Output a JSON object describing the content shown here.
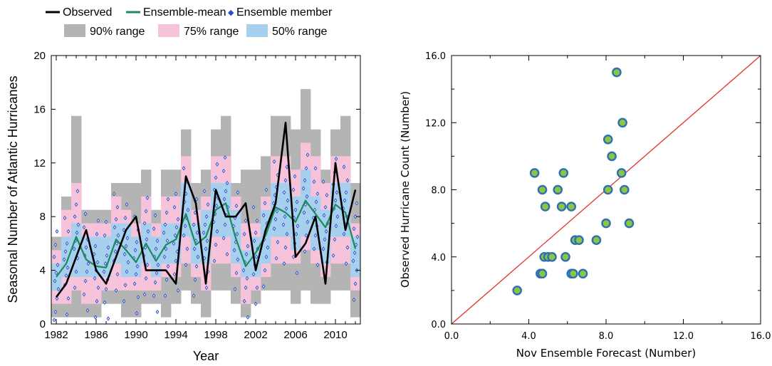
{
  "legend": {
    "observed": "Observed",
    "ensemble_mean": "Ensemble-mean",
    "ensemble_member": "Ensemble member",
    "range90": "90% range",
    "range75": "75% range",
    "range50": "50% range"
  },
  "colors": {
    "observed": "#000000",
    "ensemble_mean": "#1b8a5a",
    "ensemble_member": "#2b4fc7",
    "range90": "#b4b4b4",
    "range75": "#f6c3da",
    "range50": "#a6d0ee",
    "one_to_one": "#e0312b",
    "scatter_fill": "#8cc63f",
    "scatter_edge": "#2e6fb8"
  },
  "chart_data": [
    {
      "type": "line",
      "title": "",
      "xlabel": "Year",
      "ylabel": "Seasonal Number of Atlantic Hurricanes",
      "xlim": [
        1981.5,
        2012.5
      ],
      "ylim": [
        0,
        20
      ],
      "xticks": [
        1982,
        1986,
        1990,
        1994,
        1998,
        2002,
        2006,
        2010
      ],
      "yticks": [
        0,
        4,
        8,
        12,
        16,
        20
      ],
      "grid": false,
      "legend_position": "top",
      "x": [
        1982,
        1983,
        1984,
        1985,
        1986,
        1987,
        1988,
        1989,
        1990,
        1991,
        1992,
        1993,
        1994,
        1995,
        1996,
        1997,
        1998,
        1999,
        2000,
        2001,
        2002,
        2003,
        2004,
        2005,
        2006,
        2007,
        2008,
        2009,
        2010,
        2011,
        2012
      ],
      "series": [
        {
          "name": "Observed",
          "values": [
            2,
            3,
            5,
            7,
            4,
            3,
            5,
            7,
            8,
            4,
            4,
            4,
            3,
            11,
            9,
            3,
            10,
            8,
            8,
            9,
            4,
            7,
            9,
            15,
            5,
            6,
            8,
            3,
            12,
            7,
            10
          ]
        },
        {
          "name": "Ensemble-mean",
          "values": [
            3.5,
            4.5,
            6.5,
            4.8,
            4.3,
            4.2,
            6.3,
            5.5,
            4.6,
            6.0,
            4.7,
            5.9,
            6.3,
            8.2,
            5.9,
            6.5,
            8.5,
            9.0,
            6.4,
            4.3,
            5.3,
            6.6,
            8.7,
            8.3,
            7.6,
            9.2,
            8.2,
            7.2,
            8.9,
            8.3,
            5.6
          ]
        }
      ],
      "ranges": {
        "range90": [
          [
            0.5,
            6.5
          ],
          [
            0.5,
            9.5
          ],
          [
            0.5,
            15.5
          ],
          [
            0.5,
            8.5
          ],
          [
            0.5,
            8.5
          ],
          [
            1.5,
            8.5
          ],
          [
            1.5,
            10.5
          ],
          [
            0.5,
            10.5
          ],
          [
            0.5,
            10.5
          ],
          [
            1.5,
            11.5
          ],
          [
            1.5,
            8.5
          ],
          [
            0.5,
            11.5
          ],
          [
            1.5,
            11.5
          ],
          [
            2.5,
            14.5
          ],
          [
            1.5,
            10.5
          ],
          [
            0.5,
            11.5
          ],
          [
            2.5,
            14.5
          ],
          [
            2.5,
            15.5
          ],
          [
            1.5,
            10.5
          ],
          [
            0.5,
            11.5
          ],
          [
            1.5,
            11.5
          ],
          [
            2.5,
            12.5
          ],
          [
            2.5,
            15.5
          ],
          [
            2.5,
            15.5
          ],
          [
            1.5,
            14.5
          ],
          [
            2.5,
            17.5
          ],
          [
            1.5,
            14.5
          ],
          [
            1.5,
            11.5
          ],
          [
            2.5,
            14.5
          ],
          [
            2.5,
            15.5
          ],
          [
            0.5,
            10.5
          ]
        ],
        "range75": [
          [
            1.5,
            5.5
          ],
          [
            1.5,
            8.5
          ],
          [
            2.5,
            10.5
          ],
          [
            1.5,
            7.5
          ],
          [
            1.5,
            7.5
          ],
          [
            2.5,
            7.5
          ],
          [
            2.5,
            9.5
          ],
          [
            2.5,
            8.5
          ],
          [
            2.5,
            7.5
          ],
          [
            2.5,
            9.5
          ],
          [
            2.5,
            7.5
          ],
          [
            3.5,
            9.5
          ],
          [
            3.5,
            9.5
          ],
          [
            4.5,
            12.5
          ],
          [
            3.5,
            8.5
          ],
          [
            2.5,
            9.5
          ],
          [
            4.5,
            12.5
          ],
          [
            4.5,
            12.5
          ],
          [
            3.5,
            9.5
          ],
          [
            1.5,
            7.5
          ],
          [
            2.5,
            7.5
          ],
          [
            3.5,
            9.5
          ],
          [
            4.5,
            12.5
          ],
          [
            4.5,
            12.5
          ],
          [
            4.5,
            11.5
          ],
          [
            5.5,
            13.5
          ],
          [
            4.5,
            12.5
          ],
          [
            3.5,
            10.5
          ],
          [
            4.5,
            12.5
          ],
          [
            4.5,
            12.5
          ],
          [
            2.5,
            7.5
          ]
        ],
        "range50": [
          [
            2.5,
            4.5
          ],
          [
            3.5,
            6.5
          ],
          [
            3.5,
            7.5
          ],
          [
            3.5,
            6.5
          ],
          [
            3.5,
            6.5
          ],
          [
            3.5,
            6.5
          ],
          [
            4.5,
            7.5
          ],
          [
            3.5,
            7.5
          ],
          [
            3.5,
            6.5
          ],
          [
            4.5,
            7.5
          ],
          [
            3.5,
            6.5
          ],
          [
            4.5,
            7.5
          ],
          [
            4.5,
            7.5
          ],
          [
            6.5,
            10.5
          ],
          [
            4.5,
            7.5
          ],
          [
            4.5,
            8.5
          ],
          [
            6.5,
            10.5
          ],
          [
            6.5,
            10.5
          ],
          [
            4.5,
            8.5
          ],
          [
            3.5,
            5.5
          ],
          [
            3.5,
            6.5
          ],
          [
            4.5,
            8.5
          ],
          [
            6.5,
            10.5
          ],
          [
            6.5,
            10.5
          ],
          [
            5.5,
            9.5
          ],
          [
            6.5,
            11.5
          ],
          [
            5.5,
            9.5
          ],
          [
            4.5,
            8.5
          ],
          [
            6.5,
            10.5
          ],
          [
            6.5,
            10.5
          ],
          [
            3.5,
            6.5
          ]
        ]
      },
      "ensemble_member_offsets": [
        -3.8,
        -2.6,
        -1.6,
        -0.9,
        -0.3,
        0.3,
        0.9,
        1.5,
        2.4,
        3.4
      ]
    },
    {
      "type": "scatter",
      "title": "",
      "xlabel": "Nov Ensemble Forecast (Number)",
      "ylabel": "Observed Hurricane Count (Number)",
      "xlim": [
        0,
        16
      ],
      "ylim": [
        0,
        16
      ],
      "xticks": [
        "0.0",
        "4.0",
        "8.0",
        "12.0",
        "16.0"
      ],
      "yticks": [
        "0.0",
        "4.0",
        "8.0",
        "12.0",
        "16.0"
      ],
      "grid": false,
      "one_to_one_line": true,
      "points": [
        [
          3.4,
          2
        ],
        [
          4.3,
          9
        ],
        [
          4.6,
          3
        ],
        [
          4.7,
          3
        ],
        [
          4.7,
          8
        ],
        [
          4.8,
          4
        ],
        [
          4.85,
          7
        ],
        [
          5.0,
          4
        ],
        [
          5.2,
          4
        ],
        [
          5.5,
          8
        ],
        [
          5.7,
          7
        ],
        [
          5.8,
          9
        ],
        [
          5.9,
          4
        ],
        [
          6.2,
          3
        ],
        [
          6.2,
          7
        ],
        [
          6.3,
          3
        ],
        [
          6.4,
          5
        ],
        [
          6.6,
          5
        ],
        [
          6.8,
          3
        ],
        [
          7.5,
          5
        ],
        [
          8.0,
          6
        ],
        [
          8.1,
          8
        ],
        [
          8.1,
          11
        ],
        [
          8.3,
          10
        ],
        [
          8.55,
          15
        ],
        [
          8.8,
          9
        ],
        [
          8.85,
          12
        ],
        [
          8.95,
          8
        ],
        [
          9.2,
          6
        ]
      ]
    }
  ]
}
